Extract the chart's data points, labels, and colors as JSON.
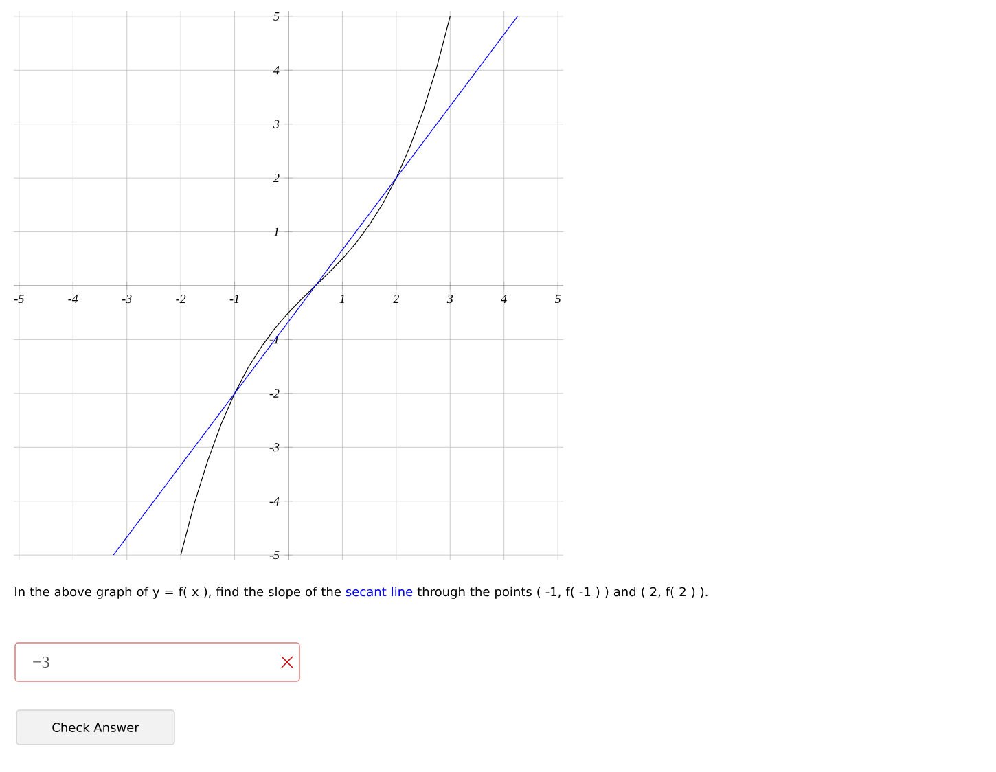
{
  "chart_data": {
    "type": "line",
    "xlim": [
      -5.1,
      5.1
    ],
    "ylim": [
      -5.1,
      5.1
    ],
    "xticks": [
      -5,
      -4,
      -3,
      -2,
      -1,
      1,
      2,
      3,
      4,
      5
    ],
    "yticks": [
      -5,
      -4,
      -3,
      -2,
      -1,
      1,
      2,
      3,
      4,
      5
    ],
    "grid": true,
    "marker": "none",
    "line_style": "solid",
    "series": [
      {
        "color": "#000000",
        "x": [
          -2,
          -1.75,
          -1.5,
          -1.25,
          -1,
          -0.75,
          -0.5,
          -0.25,
          0,
          0.25,
          0.5,
          0.75,
          1,
          1.25,
          1.5,
          1.75,
          2,
          2.25,
          2.5,
          2.75,
          3
        ],
        "values": [
          -5.0,
          -4.05,
          -3.25,
          -2.57,
          -2.0,
          -1.52,
          -1.13,
          -0.79,
          -0.5,
          -0.24,
          0,
          0.24,
          0.5,
          0.79,
          1.13,
          1.52,
          2.0,
          2.57,
          3.25,
          4.05,
          5.0
        ]
      },
      {
        "color": "#0000ff",
        "x": [
          -3.25,
          -1,
          2,
          4.25
        ],
        "values": [
          -5,
          -2,
          2,
          5
        ]
      }
    ],
    "annotations": [
      "In the above graph of y = f( x ), find the slope of the",
      "secant line",
      "through the points ( -1, f( -1 ) ) and ( 2, f( 2 ) ).",
      "−3",
      "Check Answer"
    ]
  }
}
